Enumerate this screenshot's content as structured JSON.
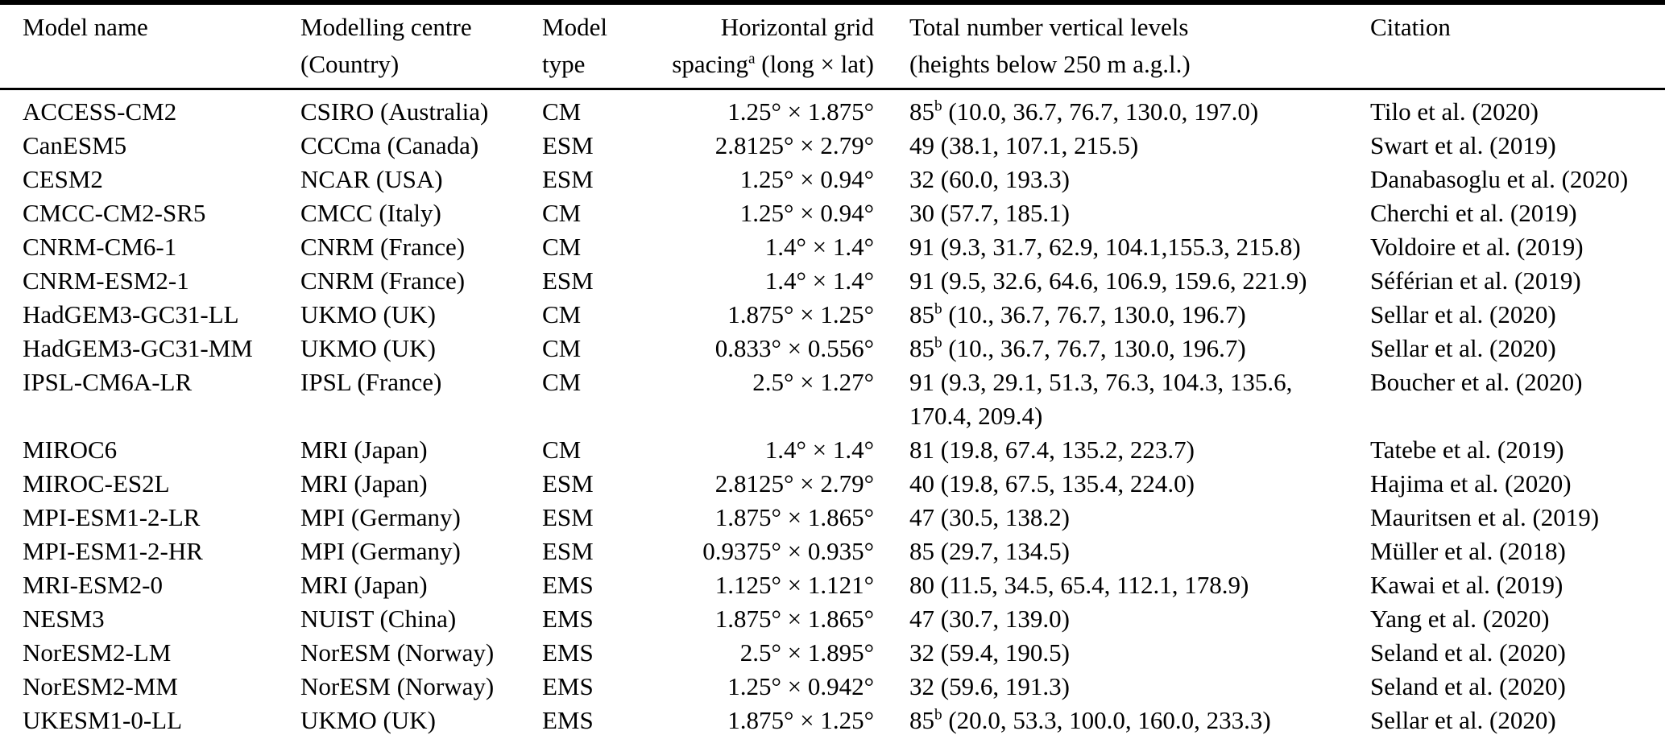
{
  "page": {
    "background_color": "#ffffff",
    "text_color": "#000000",
    "rule_color": "#000000"
  },
  "table": {
    "headers": {
      "model_name": "Model name",
      "centre_line1": "Modelling centre",
      "centre_line2": "(Country)",
      "type_line1": "Model",
      "type_line2": "type",
      "grid_line1": "Horizontal grid",
      "grid_line2_pre": "spacing",
      "grid_sup": "a",
      "grid_line2_post": " (long × lat)",
      "levels_line1": "Total number vertical levels",
      "levels_line2": "(heights below 250 m a.g.l.)",
      "citation": "Citation"
    },
    "rows": [
      {
        "model": "ACCESS-CM2",
        "centre": "CSIRO (Australia)",
        "type": "CM",
        "grid": "1.25° × 1.875°",
        "levels_num": "85",
        "levels_sup": "b",
        "levels_list": "(10.0, 36.7, 76.7, 130.0, 197.0)",
        "citation": "Tilo et al. (2020)"
      },
      {
        "model": "CanESM5",
        "centre": "CCCma (Canada)",
        "type": "ESM",
        "grid": "2.8125° × 2.79°",
        "levels_num": "49",
        "levels_sup": "",
        "levels_list": "(38.1, 107.1, 215.5)",
        "citation": "Swart et al. (2019)"
      },
      {
        "model": "CESM2",
        "centre": "NCAR (USA)",
        "type": "ESM",
        "grid": "1.25° × 0.94°",
        "levels_num": "32",
        "levels_sup": "",
        "levels_list": "(60.0, 193.3)",
        "citation": "Danabasoglu et al. (2020)"
      },
      {
        "model": "CMCC-CM2-SR5",
        "centre": "CMCC (Italy)",
        "type": "CM",
        "grid": "1.25° × 0.94°",
        "levels_num": "30",
        "levels_sup": "",
        "levels_list": "(57.7, 185.1)",
        "citation": "Cherchi et al. (2019)"
      },
      {
        "model": "CNRM-CM6-1",
        "centre": "CNRM (France)",
        "type": "CM",
        "grid": "1.4° × 1.4°",
        "levels_num": "91",
        "levels_sup": "",
        "levels_list": "(9.3, 31.7, 62.9, 104.1,155.3, 215.8)",
        "citation": "Voldoire et al. (2019)"
      },
      {
        "model": "CNRM-ESM2-1",
        "centre": "CNRM (France)",
        "type": "ESM",
        "grid": "1.4° × 1.4°",
        "levels_num": "91",
        "levels_sup": "",
        "levels_list": "(9.5, 32.6, 64.6, 106.9, 159.6, 221.9)",
        "citation": "Séférian et al. (2019)"
      },
      {
        "model": "HadGEM3-GC31-LL",
        "centre": "UKMO (UK)",
        "type": "CM",
        "grid": "1.875° × 1.25°",
        "levels_num": "85",
        "levels_sup": "b",
        "levels_list": "(10., 36.7, 76.7, 130.0, 196.7)",
        "citation": "Sellar et al. (2020)"
      },
      {
        "model": "HadGEM3-GC31-MM",
        "centre": "UKMO (UK)",
        "type": "CM",
        "grid": "0.833° × 0.556°",
        "levels_num": "85",
        "levels_sup": "b",
        "levels_list": "(10., 36.7, 76.7, 130.0, 196.7)",
        "citation": "Sellar et al. (2020)"
      },
      {
        "model": "IPSL-CM6A-LR",
        "centre": "IPSL (France)",
        "type": "CM",
        "grid": "2.5° × 1.27°",
        "levels_num": "91",
        "levels_sup": "",
        "levels_list": "(9.3, 29.1, 51.3, 76.3, 104.3, 135.6, 170.4, 209.4)",
        "citation": "Boucher et al. (2020)"
      },
      {
        "model": "MIROC6",
        "centre": "MRI (Japan)",
        "type": "CM",
        "grid": "1.4° × 1.4°",
        "levels_num": "81",
        "levels_sup": "",
        "levels_list": "(19.8, 67.4, 135.2, 223.7)",
        "citation": "Tatebe et al. (2019)"
      },
      {
        "model": "MIROC-ES2L",
        "centre": "MRI (Japan)",
        "type": "ESM",
        "grid": "2.8125° × 2.79°",
        "levels_num": "40",
        "levels_sup": "",
        "levels_list": "(19.8, 67.5, 135.4, 224.0)",
        "citation": "Hajima et al. (2020)"
      },
      {
        "model": "MPI-ESM1-2-LR",
        "centre": "MPI (Germany)",
        "type": "ESM",
        "grid": "1.875° × 1.865°",
        "levels_num": "47",
        "levels_sup": "",
        "levels_list": "(30.5, 138.2)",
        "citation": "Mauritsen et al. (2019)"
      },
      {
        "model": "MPI-ESM1-2-HR",
        "centre": "MPI (Germany)",
        "type": "ESM",
        "grid": "0.9375° × 0.935°",
        "levels_num": "85",
        "levels_sup": "",
        "levels_list": "(29.7, 134.5)",
        "citation": "Müller et al. (2018)"
      },
      {
        "model": "MRI-ESM2-0",
        "centre": "MRI (Japan)",
        "type": "EMS",
        "grid": "1.125° × 1.121°",
        "levels_num": "80",
        "levels_sup": "",
        "levels_list": "(11.5, 34.5, 65.4, 112.1, 178.9)",
        "citation": "Kawai et al. (2019)"
      },
      {
        "model": "NESM3",
        "centre": "NUIST (China)",
        "type": "EMS",
        "grid": "1.875° × 1.865°",
        "levels_num": "47",
        "levels_sup": "",
        "levels_list": "(30.7, 139.0)",
        "citation": "Yang et al. (2020)"
      },
      {
        "model": "NorESM2-LM",
        "centre": "NorESM (Norway)",
        "type": "EMS",
        "grid": "2.5° × 1.895°",
        "levels_num": "32",
        "levels_sup": "",
        "levels_list": "(59.4, 190.5)",
        "citation": "Seland et al. (2020)"
      },
      {
        "model": "NorESM2-MM",
        "centre": "NorESM (Norway)",
        "type": "EMS",
        "grid": "1.25° × 0.942°",
        "levels_num": "32",
        "levels_sup": "",
        "levels_list": "(59.6, 191.3)",
        "citation": "Seland et al. (2020)"
      },
      {
        "model": "UKESM1-0-LL",
        "centre": "UKMO (UK)",
        "type": "EMS",
        "grid": "1.875° × 1.25°",
        "levels_num": "85",
        "levels_sup": "b",
        "levels_list": "(20.0, 53.3, 100.0, 160.0, 233.3)",
        "citation": "Sellar et al. (2020)"
      }
    ]
  }
}
